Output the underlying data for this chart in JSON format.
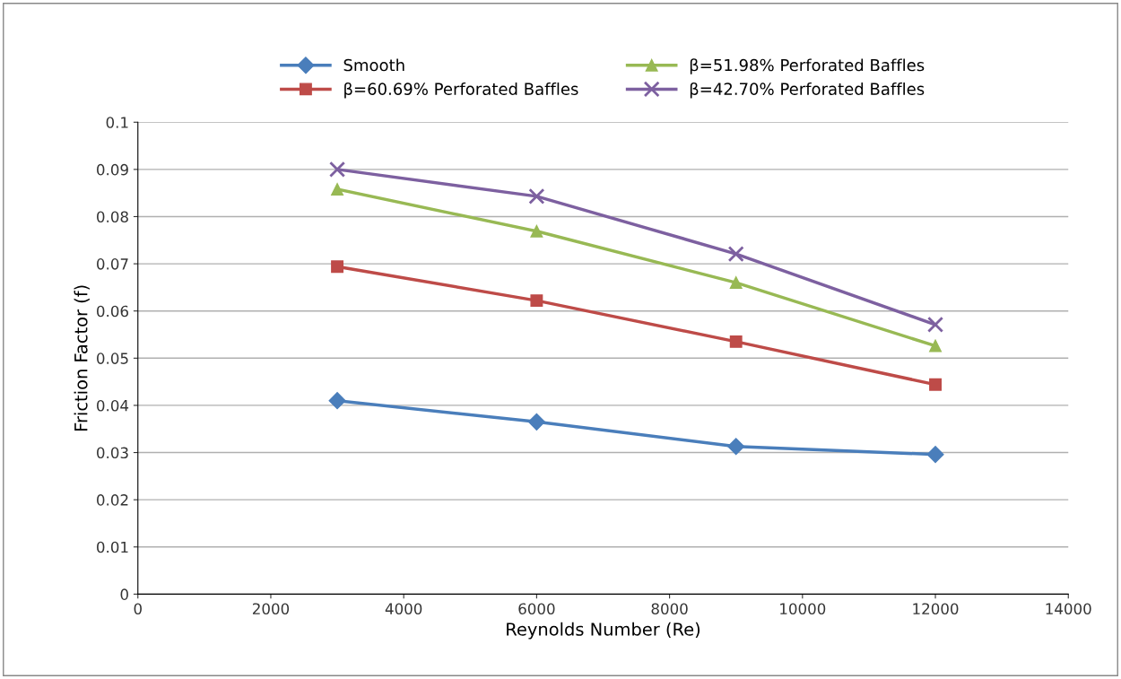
{
  "chart_data": {
    "type": "line",
    "xlabel": "Reynolds Number (Re)",
    "ylabel": "Friction Factor (f)",
    "x": [
      3000,
      6000,
      9000,
      12000
    ],
    "series": [
      {
        "name": "Smooth",
        "color": "#4a7ebb",
        "marker": "diamond",
        "values": [
          0.041,
          0.0365,
          0.0313,
          0.0296
        ]
      },
      {
        "name": "β=60.69% Perforated Baffles",
        "color": "#be4b48",
        "marker": "square",
        "values": [
          0.0694,
          0.0622,
          0.0535,
          0.0444
        ]
      },
      {
        "name": "β=51.98% Perforated Baffles",
        "color": "#98b954",
        "marker": "triangle",
        "values": [
          0.0858,
          0.0769,
          0.066,
          0.0526
        ]
      },
      {
        "name": "β=42.70% Perforated Baffles",
        "color": "#7d60a0",
        "marker": "cross",
        "values": [
          0.09,
          0.0843,
          0.0721,
          0.0571
        ]
      }
    ],
    "xlim": [
      0,
      14000
    ],
    "xticks": [
      0,
      2000,
      4000,
      6000,
      8000,
      10000,
      12000,
      14000
    ],
    "ylim": [
      0,
      0.1
    ],
    "yticks": [
      {
        "value": 0,
        "label": "0"
      },
      0.01,
      0.02,
      0.03,
      0.04,
      0.05,
      0.06,
      0.07,
      0.08,
      0.09,
      0.1
    ],
    "grid": "y",
    "legend": "top",
    "line_style": "solid"
  }
}
